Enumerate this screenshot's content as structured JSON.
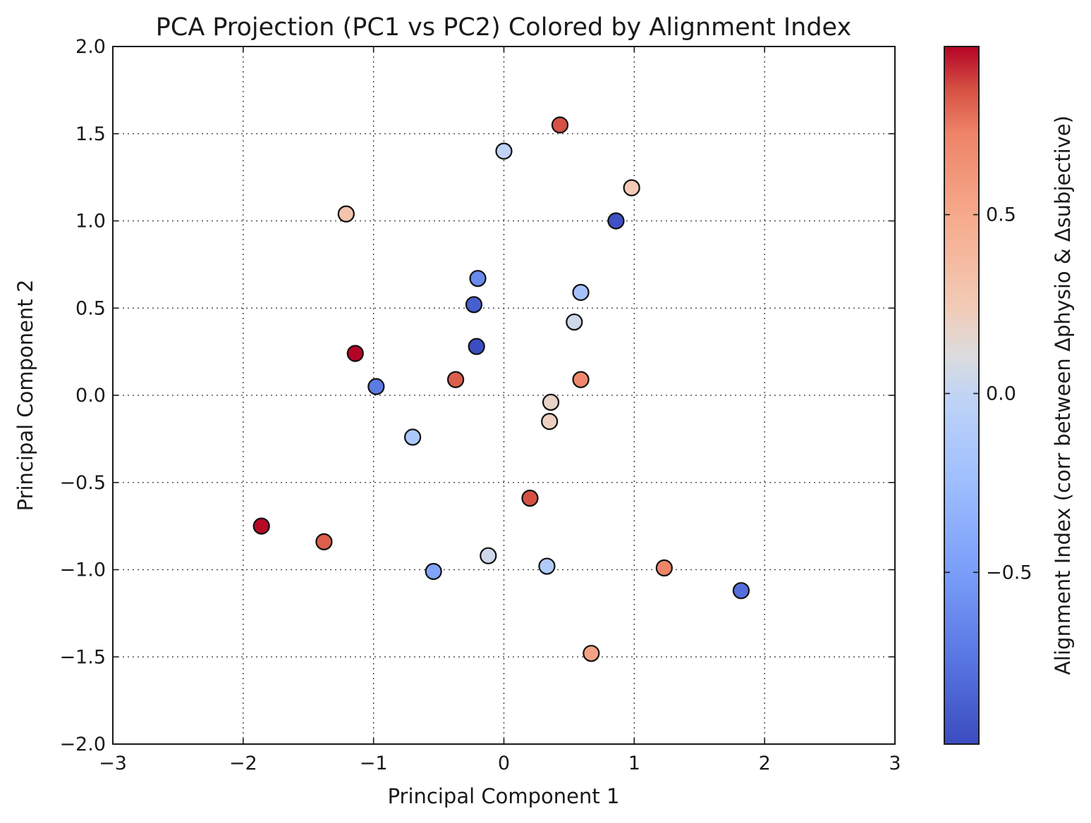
{
  "chart_data": {
    "type": "scatter",
    "title": "PCA Projection (PC1 vs PC2) Colored by Alignment Index",
    "xlabel": "Principal Component 1",
    "ylabel": "Principal Component 2",
    "xlim": [
      -3,
      3
    ],
    "ylim": [
      -2,
      2
    ],
    "x_ticks": [
      -3,
      -2,
      -1,
      0,
      1,
      2,
      3
    ],
    "y_ticks": [
      -2.0,
      -1.5,
      -1.0,
      -0.5,
      0.0,
      0.5,
      1.0,
      1.5,
      2.0
    ],
    "x_tick_labels": [
      "−3",
      "−2",
      "−1",
      "0",
      "1",
      "2",
      "3"
    ],
    "y_tick_labels": [
      "−2.0",
      "−1.5",
      "−1.0",
      "−0.5",
      "0.0",
      "0.5",
      "1.0",
      "1.5",
      "2.0"
    ],
    "grid": true,
    "colormap": "coolwarm",
    "colorbar": {
      "label": "Alignment Index (corr between Δphysio & Δsubjective)",
      "range": [
        -0.98,
        0.97
      ],
      "ticks": [
        -0.5,
        0.0,
        0.5
      ],
      "tick_labels": [
        "−0.5",
        "0.0",
        "0.5"
      ],
      "placement": "right"
    },
    "points": [
      {
        "x": 0.43,
        "y": 1.55,
        "c": 0.85
      },
      {
        "x": 0.0,
        "y": 1.4,
        "c": -0.02
      },
      {
        "x": 0.98,
        "y": 1.19,
        "c": 0.25
      },
      {
        "x": -1.21,
        "y": 1.04,
        "c": 0.3
      },
      {
        "x": 0.86,
        "y": 1.0,
        "c": -0.95
      },
      {
        "x": -0.2,
        "y": 0.67,
        "c": -0.62
      },
      {
        "x": 0.59,
        "y": 0.59,
        "c": -0.2
      },
      {
        "x": -0.23,
        "y": 0.52,
        "c": -0.88
      },
      {
        "x": 0.54,
        "y": 0.42,
        "c": 0.05
      },
      {
        "x": -0.21,
        "y": 0.28,
        "c": -0.97
      },
      {
        "x": -1.14,
        "y": 0.24,
        "c": 0.97
      },
      {
        "x": -0.37,
        "y": 0.09,
        "c": 0.82
      },
      {
        "x": 0.59,
        "y": 0.09,
        "c": 0.7
      },
      {
        "x": -0.98,
        "y": 0.05,
        "c": -0.72
      },
      {
        "x": 0.36,
        "y": -0.04,
        "c": 0.18
      },
      {
        "x": 0.35,
        "y": -0.15,
        "c": 0.2
      },
      {
        "x": -0.7,
        "y": -0.24,
        "c": -0.15
      },
      {
        "x": 0.2,
        "y": -0.59,
        "c": 0.85
      },
      {
        "x": -1.86,
        "y": -0.75,
        "c": 0.96
      },
      {
        "x": -1.38,
        "y": -0.84,
        "c": 0.82
      },
      {
        "x": -0.12,
        "y": -0.92,
        "c": 0.05
      },
      {
        "x": 0.33,
        "y": -0.98,
        "c": -0.12
      },
      {
        "x": -0.54,
        "y": -1.01,
        "c": -0.45
      },
      {
        "x": 1.23,
        "y": -0.99,
        "c": 0.72
      },
      {
        "x": 1.82,
        "y": -1.12,
        "c": -0.78
      },
      {
        "x": 0.67,
        "y": -1.48,
        "c": 0.55
      }
    ]
  }
}
